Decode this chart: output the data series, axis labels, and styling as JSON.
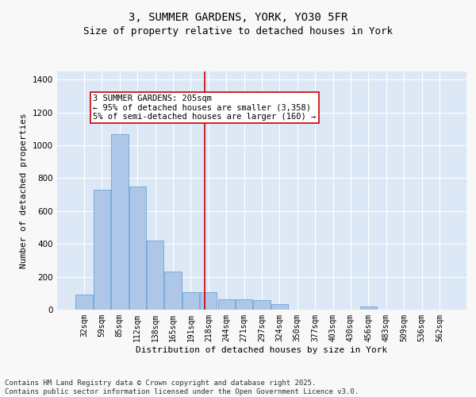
{
  "title_line1": "3, SUMMER GARDENS, YORK, YO30 5FR",
  "title_line2": "Size of property relative to detached houses in York",
  "xlabel": "Distribution of detached houses by size in York",
  "ylabel": "Number of detached properties",
  "categories": [
    "32sqm",
    "59sqm",
    "85sqm",
    "112sqm",
    "138sqm",
    "165sqm",
    "191sqm",
    "218sqm",
    "244sqm",
    "271sqm",
    "297sqm",
    "324sqm",
    "350sqm",
    "377sqm",
    "403sqm",
    "430sqm",
    "456sqm",
    "483sqm",
    "509sqm",
    "536sqm",
    "562sqm"
  ],
  "values": [
    90,
    730,
    1070,
    750,
    420,
    230,
    105,
    105,
    65,
    65,
    60,
    35,
    0,
    0,
    0,
    0,
    20,
    0,
    0,
    0,
    0
  ],
  "bar_color": "#aec6e8",
  "bar_edge_color": "#5b9bd5",
  "vline_x": 6.77,
  "vline_color": "#cc0000",
  "annotation_text": "3 SUMMER GARDENS: 205sqm\n← 95% of detached houses are smaller (3,358)\n5% of semi-detached houses are larger (160) →",
  "annotation_box_color": "#cc0000",
  "ylim": [
    0,
    1450
  ],
  "plot_bg_color": "#dce8f5",
  "grid_color": "#ffffff",
  "footer_line1": "Contains HM Land Registry data © Crown copyright and database right 2025.",
  "footer_line2": "Contains public sector information licensed under the Open Government Licence v3.0.",
  "title_fontsize": 10,
  "subtitle_fontsize": 9,
  "axis_label_fontsize": 8,
  "tick_fontsize": 7,
  "annotation_fontsize": 7.5,
  "footer_fontsize": 6.5
}
